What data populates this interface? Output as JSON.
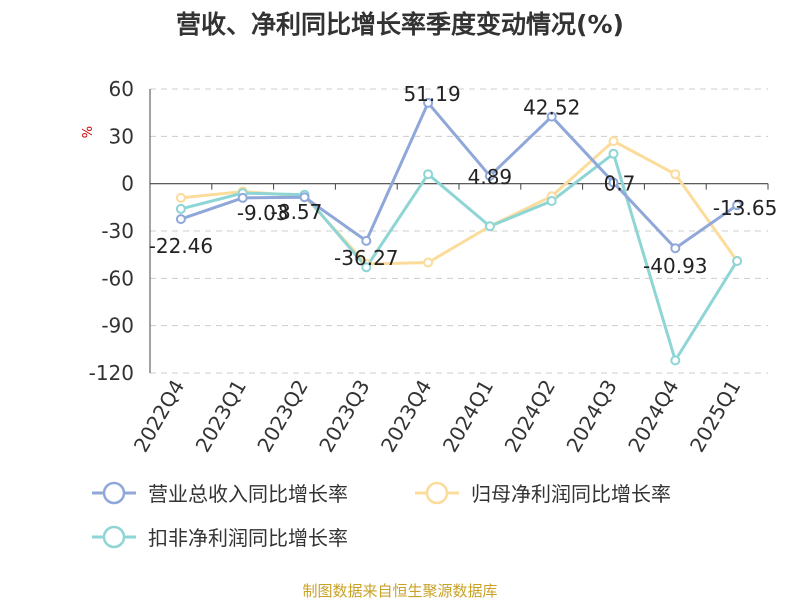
{
  "chart_data": {
    "type": "line",
    "title": "营收、净利同比增长率季度变动情况(%)",
    "ylabel": "%",
    "ylim": [
      -120,
      60
    ],
    "yticks": [
      60,
      30,
      0,
      -30,
      -60,
      -90,
      -120
    ],
    "categories": [
      "2022Q4",
      "2023Q1",
      "2023Q2",
      "2023Q3",
      "2023Q4",
      "2024Q1",
      "2024Q2",
      "2024Q3",
      "2024Q4",
      "2025Q1"
    ],
    "grid": true,
    "legend_position": "bottom",
    "series": [
      {
        "name": "营业总收入同比增长率",
        "color": "#8fa8d9",
        "values": [
          -22.46,
          -9.03,
          -8.57,
          -36.27,
          51.19,
          4.89,
          42.52,
          0.7,
          -40.93,
          -13.65
        ],
        "labels": [
          "-22.46",
          "-9.03",
          "-8.57",
          "-36.27",
          "51.19",
          "4.89",
          "42.52",
          "0.7",
          "-40.93",
          "-13.65"
        ]
      },
      {
        "name": "归母净利润同比增长率",
        "color": "#fbdc9b",
        "values": [
          -9,
          -5,
          -8,
          -51,
          -50,
          -27,
          -8,
          27,
          6,
          -49
        ]
      },
      {
        "name": "扣非净利润同比增长率",
        "color": "#8ed5d5",
        "values": [
          -16,
          -6,
          -7,
          -53,
          6,
          -27,
          -11,
          19,
          -112,
          -49
        ]
      }
    ]
  },
  "source_text": "制图数据来自恒生聚源数据库"
}
